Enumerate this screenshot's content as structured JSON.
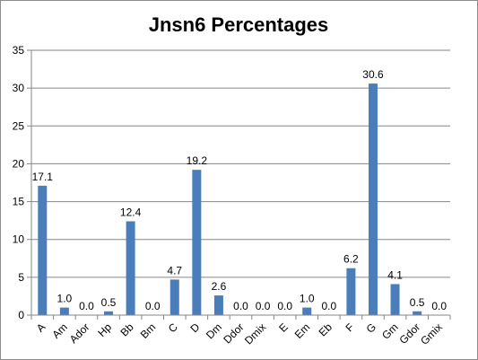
{
  "chart_data": {
    "type": "bar",
    "title": "Jnsn6 Percentages",
    "xlabel": "",
    "ylabel": "",
    "ylim": [
      0,
      35
    ],
    "yticks": [
      0,
      5,
      10,
      15,
      20,
      25,
      30,
      35
    ],
    "grid": true,
    "legend": "none",
    "bar_color": "#4a7ebb",
    "categories": [
      "A",
      "Am",
      "Ador",
      "Hp",
      "Bb",
      "Bm",
      "C",
      "D",
      "Dm",
      "Ddor",
      "Dmix",
      "E",
      "Em",
      "Eb",
      "F",
      "G",
      "Gm",
      "Gdor",
      "Gmix"
    ],
    "values": [
      17.1,
      1.0,
      0.0,
      0.5,
      12.4,
      0.0,
      4.7,
      19.2,
      2.6,
      0.0,
      0.0,
      0.0,
      1.0,
      0.0,
      6.2,
      30.6,
      4.1,
      0.5,
      0.0
    ],
    "data_labels": [
      "17.1",
      "1.0",
      "0.0",
      "0.5",
      "12.4",
      "0.0",
      "4.7",
      "19.2",
      "2.6",
      "0.0",
      "0.0",
      "0.0",
      "1.0",
      "0.0",
      "6.2",
      "30.6",
      "4.1",
      "0.5",
      "0.0"
    ]
  }
}
